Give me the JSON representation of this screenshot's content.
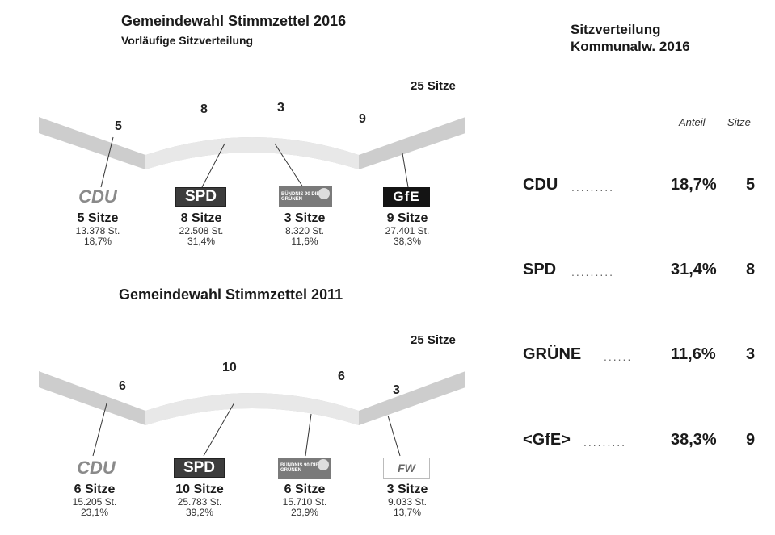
{
  "colors": {
    "band_shade": "#cdcdcd",
    "band_light": "#e8e8e8",
    "spd_box": "#3c3c3c",
    "gfe_box": "#141414",
    "gruene_box": "#7a7a7a",
    "cdu_text": "#8a8a8a"
  },
  "chart_data": [
    {
      "type": "bar",
      "title": "Gemeindewahl Stimmzettel 2016",
      "subtitle": "Vorläufige Sitzverteilung",
      "total_label": "25 Sitze",
      "categories": [
        "CDU",
        "SPD",
        "GRÜNE",
        "GfE"
      ],
      "series": [
        {
          "name": "Sitze",
          "values": [
            5,
            8,
            3,
            9
          ]
        },
        {
          "name": "St.",
          "values": [
            13378,
            22508,
            8320,
            27401
          ]
        },
        {
          "name": "Anteil",
          "values": [
            18.7,
            31.4,
            11.6,
            38.3
          ]
        }
      ],
      "arc_numbers": [
        "5",
        "8",
        "3",
        "9"
      ],
      "parties": [
        {
          "logo": "CDU",
          "logo_icon": "cdu-logo",
          "seats_label": "5 Sitze",
          "votes_label": "13.378 St.",
          "share_label": "18,7%"
        },
        {
          "logo": "SPD",
          "logo_icon": "spd-logo",
          "seats_label": "8 Sitze",
          "votes_label": "22.508 St.",
          "share_label": "31,4%"
        },
        {
          "logo": "BÜNDNIS 90 DIE GRÜNEN",
          "logo_icon": "gruene-logo",
          "seats_label": "3 Sitze",
          "votes_label": "8.320 St.",
          "share_label": "11,6%"
        },
        {
          "logo": "GfE",
          "logo_icon": "gfe-logo",
          "seats_label": "9 Sitze",
          "votes_label": "27.401 St.",
          "share_label": "38,3%"
        }
      ]
    },
    {
      "type": "bar",
      "title": "Gemeindewahl Stimmzettel 2011",
      "total_label": "25 Sitze",
      "categories": [
        "CDU",
        "SPD",
        "GRÜNE",
        "FW"
      ],
      "series": [
        {
          "name": "Sitze",
          "values": [
            6,
            10,
            6,
            3
          ]
        },
        {
          "name": "St.",
          "values": [
            15205,
            25783,
            15710,
            9033
          ]
        },
        {
          "name": "Anteil",
          "values": [
            23.1,
            39.2,
            23.9,
            13.7
          ]
        }
      ],
      "arc_numbers": [
        "6",
        "10",
        "6",
        "3"
      ],
      "parties": [
        {
          "logo": "CDU",
          "logo_icon": "cdu-logo",
          "seats_label": "6 Sitze",
          "votes_label": "15.205 St.",
          "share_label": "23,1%"
        },
        {
          "logo": "SPD",
          "logo_icon": "spd-logo",
          "seats_label": "10 Sitze",
          "votes_label": "25.783 St.",
          "share_label": "39,2%"
        },
        {
          "logo": "BÜNDNIS 90 DIE GRÜNEN",
          "logo_icon": "gruene-logo",
          "seats_label": "6 Sitze",
          "votes_label": "15.710 St.",
          "share_label": "23,9%"
        },
        {
          "logo": "FW",
          "logo_icon": "fw-logo",
          "seats_label": "3 Sitze",
          "votes_label": "9.033 St.",
          "share_label": "13,7%"
        }
      ]
    },
    {
      "type": "table",
      "title_line1": "Sitzverteilung",
      "title_line2": "Kommunalw. 2016",
      "columns": [
        "Anteil",
        "Sitze"
      ],
      "rows": [
        {
          "party": "CDU",
          "dots": ".........",
          "share": "18,7%",
          "seats": "5"
        },
        {
          "party": "SPD",
          "dots": ".........",
          "share": "31,4%",
          "seats": "8"
        },
        {
          "party": "GRÜNE",
          "dots": "......",
          "share": "11,6%",
          "seats": "3"
        },
        {
          "party": "<GfE>",
          "dots": ".........",
          "share": "38,3%",
          "seats": "9"
        }
      ]
    }
  ]
}
